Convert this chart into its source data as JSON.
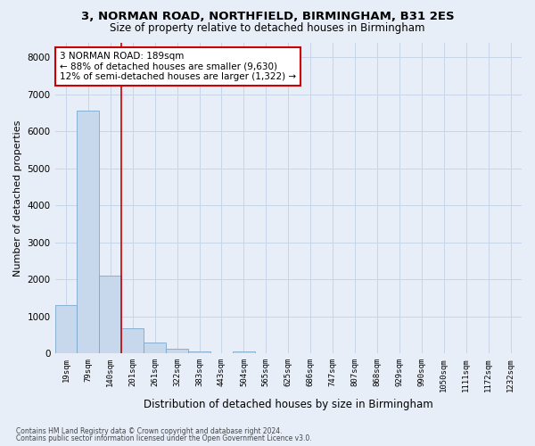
{
  "title1": "3, NORMAN ROAD, NORTHFIELD, BIRMINGHAM, B31 2ES",
  "title2": "Size of property relative to detached houses in Birmingham",
  "xlabel": "Distribution of detached houses by size in Birmingham",
  "ylabel": "Number of detached properties",
  "categories": [
    "19sqm",
    "79sqm",
    "140sqm",
    "201sqm",
    "261sqm",
    "322sqm",
    "383sqm",
    "443sqm",
    "504sqm",
    "565sqm",
    "625sqm",
    "686sqm",
    "747sqm",
    "807sqm",
    "868sqm",
    "929sqm",
    "990sqm",
    "1050sqm",
    "1111sqm",
    "1172sqm",
    "1232sqm"
  ],
  "values": [
    1300,
    6550,
    2100,
    680,
    290,
    120,
    60,
    0,
    60,
    0,
    0,
    0,
    0,
    0,
    0,
    0,
    0,
    0,
    0,
    0,
    0
  ],
  "bar_color": "#c8d8ec",
  "bar_edgecolor": "#7aa8cc",
  "vline_x": 2.5,
  "vline_color": "#cc0000",
  "annotation_text": "3 NORMAN ROAD: 189sqm\n← 88% of detached houses are smaller (9,630)\n12% of semi-detached houses are larger (1,322) →",
  "annotation_box_color": "#ffffff",
  "annotation_box_edgecolor": "#cc0000",
  "ylim": [
    0,
    8400
  ],
  "yticks": [
    0,
    1000,
    2000,
    3000,
    4000,
    5000,
    6000,
    7000,
    8000
  ],
  "grid_color": "#c8d4e8",
  "background_color": "#e8eef8",
  "footer1": "Contains HM Land Registry data © Crown copyright and database right 2024.",
  "footer2": "Contains public sector information licensed under the Open Government Licence v3.0."
}
